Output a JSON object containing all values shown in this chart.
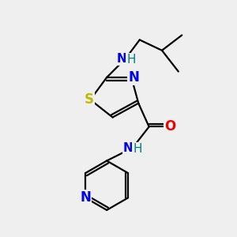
{
  "bg_color": "#efefef",
  "bond_color": "#000000",
  "bond_width": 1.6,
  "atoms": {
    "S": {
      "color": "#bbbb00",
      "fontsize": 12
    },
    "N": {
      "color": "#0000ee",
      "fontsize": 12
    },
    "NH": {
      "color": "#0000ee",
      "fontsize": 11
    },
    "O": {
      "color": "#ee0000",
      "fontsize": 12
    },
    "H": {
      "color": "#008080",
      "fontsize": 11
    }
  },
  "figsize": [
    3.0,
    3.0
  ],
  "dpi": 100,
  "xlim": [
    0,
    10
  ],
  "ylim": [
    0,
    10
  ]
}
